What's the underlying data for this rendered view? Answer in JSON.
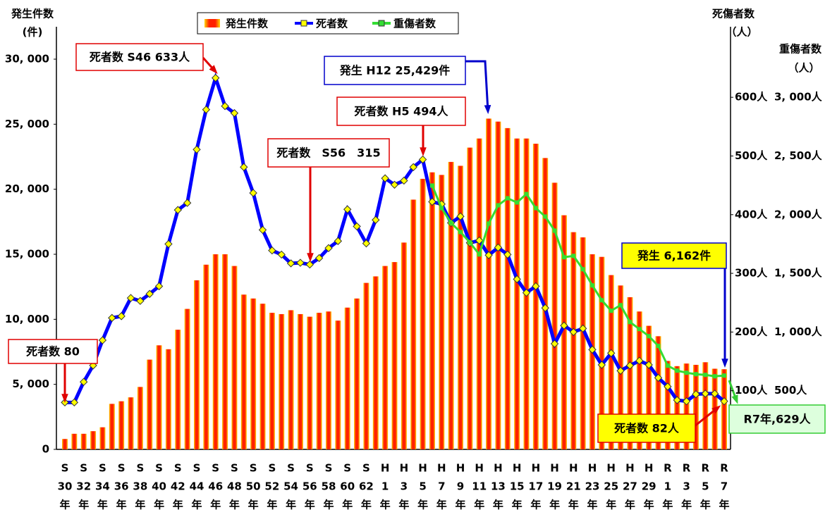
{
  "chart_data": {
    "type": "bar-line",
    "y_title": [
      "発生件数",
      "(件)"
    ],
    "y2_title": [
      "死傷者数",
      "（人）"
    ],
    "y3_title": [
      "重傷者数",
      "（人）"
    ],
    "categories": [
      [
        "S",
        "30",
        "年"
      ],
      null,
      [
        "S",
        "32",
        "年"
      ],
      null,
      [
        "S",
        "34",
        "年"
      ],
      null,
      [
        "S",
        "36",
        "年"
      ],
      null,
      [
        "S",
        "38",
        "年"
      ],
      null,
      [
        "S",
        "40",
        "年"
      ],
      null,
      [
        "S",
        "42",
        "年"
      ],
      null,
      [
        "S",
        "44",
        "年"
      ],
      null,
      [
        "S",
        "46",
        "年"
      ],
      null,
      [
        "S",
        "48",
        "年"
      ],
      null,
      [
        "S",
        "50",
        "年"
      ],
      null,
      [
        "S",
        "52",
        "年"
      ],
      null,
      [
        "S",
        "54",
        "年"
      ],
      null,
      [
        "S",
        "56",
        "年"
      ],
      null,
      [
        "S",
        "58",
        "年"
      ],
      null,
      [
        "S",
        "60",
        "年"
      ],
      null,
      [
        "S",
        "62",
        "年"
      ],
      null,
      [
        "H",
        "1",
        "年"
      ],
      null,
      [
        "H",
        "3",
        "年"
      ],
      null,
      [
        "H",
        "5",
        "年"
      ],
      null,
      [
        "H",
        "7",
        "年"
      ],
      null,
      [
        "H",
        "9",
        "年"
      ],
      null,
      [
        "H",
        "11",
        "年"
      ],
      null,
      [
        "H",
        "13",
        "年"
      ],
      null,
      [
        "H",
        "15",
        "年"
      ],
      null,
      [
        "H",
        "17",
        "年"
      ],
      null,
      [
        "H",
        "19",
        "年"
      ],
      null,
      [
        "H",
        "21",
        "年"
      ],
      null,
      [
        "H",
        "23",
        "年"
      ],
      null,
      [
        "H",
        "25",
        "年"
      ],
      null,
      [
        "H",
        "27",
        "年"
      ],
      null,
      [
        "H",
        "29",
        "年"
      ],
      null,
      [
        "R",
        "1",
        "年"
      ],
      null,
      [
        "R",
        "3",
        "年"
      ],
      null,
      [
        "R",
        "5",
        "年"
      ],
      null,
      [
        "R",
        "7",
        "年"
      ]
    ],
    "series": [
      {
        "name": "発生件数",
        "type": "bar",
        "color": "#ff0000",
        "edge_color": "#ffd700",
        "values": [
          800,
          1200,
          1200,
          1400,
          1700,
          3500,
          3700,
          4000,
          4800,
          6900,
          8000,
          7700,
          9200,
          10800,
          13000,
          14200,
          15000,
          15000,
          14100,
          11900,
          11600,
          11200,
          10500,
          10400,
          10700,
          10400,
          10200,
          10500,
          10600,
          9900,
          10900,
          11600,
          12800,
          13300,
          14100,
          14400,
          15900,
          19200,
          20800,
          21300,
          21100,
          22100,
          21800,
          23200,
          23900,
          25429,
          25200,
          24700,
          23900,
          23900,
          23500,
          22400,
          20500,
          18000,
          16700,
          16300,
          15000,
          14800,
          13400,
          12600,
          11700,
          10600,
          9500,
          8700,
          6800,
          6400,
          6600,
          6500,
          6700,
          6200,
          6162
        ]
      },
      {
        "name": "死者数",
        "type": "line",
        "axis": "y2",
        "color": "#0000ff",
        "marker_color": "#ffff00",
        "values": [
          80,
          80,
          115,
          143,
          186,
          224,
          227,
          258,
          253,
          265,
          278,
          350,
          408,
          420,
          511,
          579,
          633,
          585,
          573,
          481,
          437,
          374,
          339,
          332,
          317,
          318,
          315,
          326,
          343,
          355,
          409,
          380,
          351,
          391,
          462,
          451,
          458,
          481,
          494,
          422,
          418,
          386,
          397,
          352,
          356,
          331,
          344,
          332,
          290,
          267,
          278,
          241,
          180,
          211,
          200,
          206,
          170,
          144,
          164,
          134,
          143,
          151,
          144,
          122,
          107,
          84,
          82,
          94,
          95,
          95,
          82
        ]
      },
      {
        "name": "重傷者数",
        "type": "line",
        "axis": "y3",
        "color": "#33dd33",
        "marker_color": "#33dd33",
        "values": [
          null,
          null,
          null,
          null,
          null,
          null,
          null,
          null,
          null,
          null,
          null,
          null,
          null,
          null,
          null,
          null,
          null,
          null,
          null,
          null,
          null,
          null,
          null,
          null,
          null,
          null,
          null,
          null,
          null,
          null,
          null,
          null,
          null,
          null,
          null,
          null,
          null,
          null,
          null,
          2248,
          2056,
          1930,
          1852,
          1763,
          1661,
          1924,
          2080,
          2140,
          2104,
          2176,
          2056,
          1984,
          1864,
          1637,
          1649,
          1535,
          1397,
          1271,
          1181,
          1229,
          1085,
          1025,
          965,
          882,
          713,
          671,
          653,
          641,
          635,
          623,
          629
        ]
      }
    ],
    "ylim": [
      0,
      30000
    ],
    "yticks": [
      0,
      {
        "value": 5000,
        "label": "5, 000"
      },
      {
        "value": 10000,
        "label": "10, 000"
      },
      {
        "value": 15000,
        "label": "15, 000"
      },
      {
        "value": 20000,
        "label": "20, 000"
      },
      {
        "value": 25000,
        "label": "25, 000"
      },
      {
        "value": 30000,
        "label": "30, 000"
      }
    ],
    "y2lim": [
      0,
      665
    ],
    "y2ticks": [
      {
        "value": 100,
        "label": "100人"
      },
      {
        "value": 200,
        "label": "200人"
      },
      {
        "value": 300,
        "label": "300人"
      },
      {
        "value": 400,
        "label": "400人"
      },
      {
        "value": 500,
        "label": "500人"
      },
      {
        "value": 600,
        "label": "600人"
      }
    ],
    "y3lim": [
      0,
      3325
    ],
    "y3ticks": [
      {
        "value": 500,
        "label": "500人"
      },
      {
        "value": 1000,
        "label": "1, 000人"
      },
      {
        "value": 1500,
        "label": "1, 500人"
      },
      {
        "value": 2000,
        "label": "2, 000人"
      },
      {
        "value": 2500,
        "label": "2, 500人"
      },
      {
        "value": 3000,
        "label": "3, 000人"
      }
    ],
    "annotations": [
      "死者数 S46 633人",
      "死者数　S56　315",
      "死者数 H5 494人",
      "発生 H12 25,429件",
      "死者数 80",
      "発生 6,162件",
      "死者数 82人",
      "R7年,629人"
    ]
  }
}
